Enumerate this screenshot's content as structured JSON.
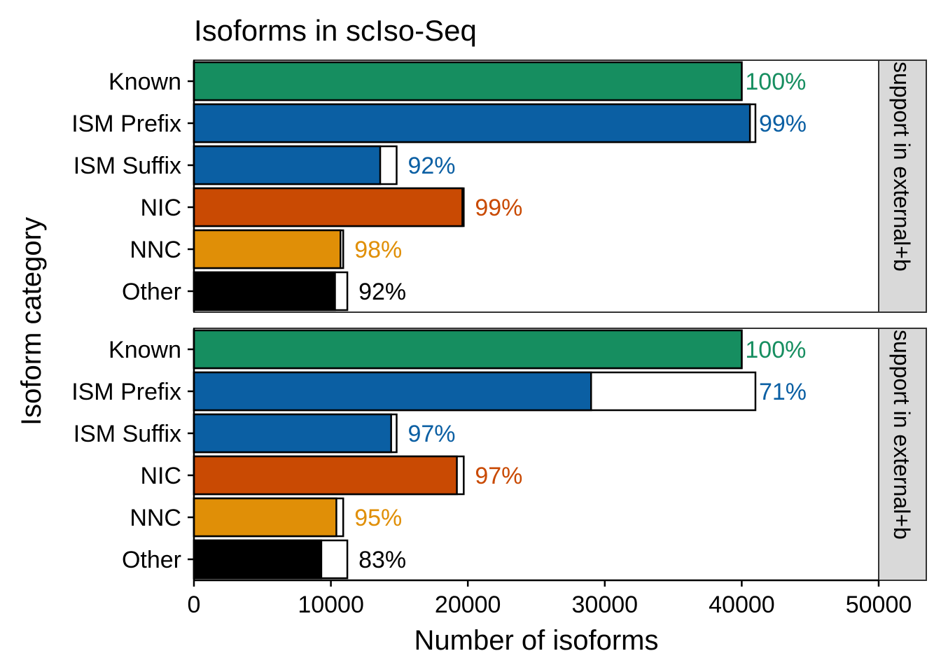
{
  "chart_data": {
    "type": "bar",
    "orientation": "horizontal",
    "title": "Isoforms in scIso-Seq",
    "xlabel": "Number of isoforms",
    "ylabel": "Isoform category",
    "xlim": [
      0,
      50000
    ],
    "x_ticks": [
      0,
      10000,
      20000,
      30000,
      40000,
      50000
    ],
    "x_tick_labels": [
      "0",
      "10000",
      "20000",
      "30000",
      "40000",
      "50000"
    ],
    "categories": [
      "Known",
      "ISM Prefix",
      "ISM Suffix",
      "NIC",
      "NNC",
      "Other"
    ],
    "colors": {
      "Known": "#168E60",
      "ISM Prefix": "#0B5FA3",
      "ISM Suffix": "#0B5FA3",
      "NIC": "#C94A03",
      "NNC": "#E08F07",
      "Other": "#000000"
    },
    "panels": [
      {
        "strip_label": "support in external+b",
        "total": [
          40000,
          41000,
          14800,
          19700,
          10900,
          11200
        ],
        "supported": [
          40000,
          40600,
          13600,
          19600,
          10700,
          10300
        ],
        "percent_labels": [
          "100%",
          "99%",
          "92%",
          "99%",
          "98%",
          "92%"
        ]
      },
      {
        "strip_label": "support in external+b",
        "total": [
          40000,
          41000,
          14800,
          19700,
          10900,
          11200
        ],
        "supported": [
          40000,
          29000,
          14400,
          19200,
          10400,
          9300
        ],
        "percent_labels": [
          "100%",
          "71%",
          "97%",
          "97%",
          "95%",
          "83%"
        ]
      }
    ]
  }
}
